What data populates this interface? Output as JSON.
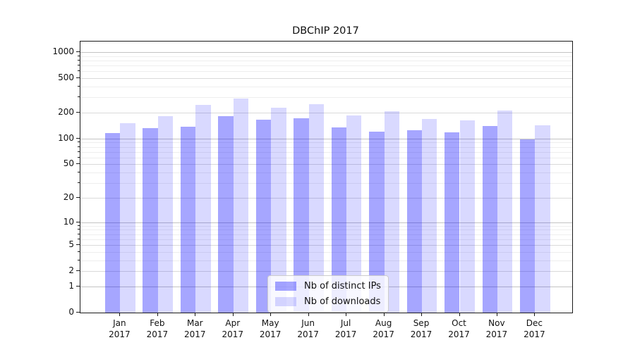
{
  "chart_data": {
    "type": "bar",
    "title": "DBChIP 2017",
    "categories": [
      "Jan",
      "Feb",
      "Mar",
      "Apr",
      "May",
      "Jun",
      "Jul",
      "Aug",
      "Sep",
      "Oct",
      "Nov",
      "Dec"
    ],
    "x_tick_second_line": "2017",
    "series": [
      {
        "name": "Nb of distinct IPs",
        "color": "rgba(0,0,255,0.35)",
        "values": [
          115,
          132,
          137,
          181,
          165,
          173,
          135,
          121,
          125,
          118,
          140,
          98
        ]
      },
      {
        "name": "Nb of downloads",
        "color": "rgba(0,0,255,0.15)",
        "values": [
          150,
          183,
          244,
          290,
          228,
          250,
          186,
          208,
          169,
          163,
          211,
          144
        ]
      }
    ],
    "y_scale": "log1p",
    "y_ticks": [
      0,
      1,
      2,
      5,
      10,
      20,
      50,
      100,
      200,
      500,
      1000
    ],
    "y_max": 1000,
    "grid": "both",
    "legend_position": "lower center",
    "colors": {
      "axis": "#1a1a1a",
      "grid_decade": "#c3c3c3",
      "grid_mid": "#dadada",
      "grid_minor": "#eeeeee",
      "text": "#111111"
    }
  }
}
